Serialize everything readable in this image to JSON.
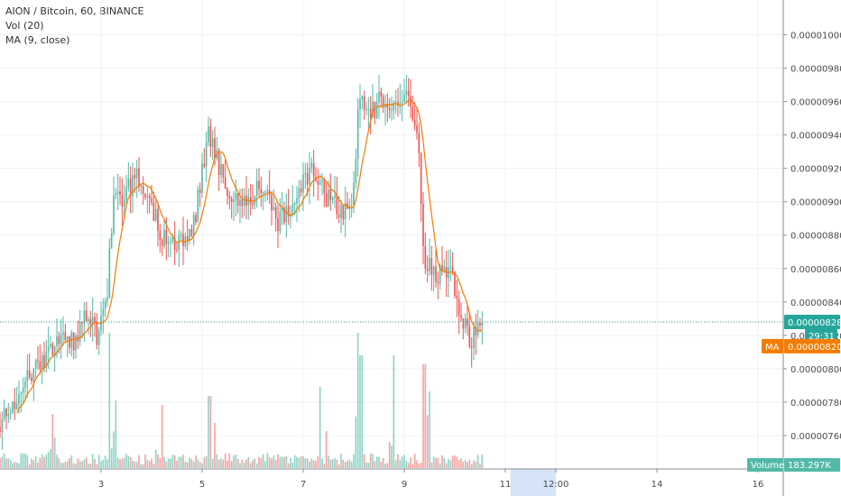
{
  "header": {
    "symbol_line": "AION / Bitcoin, 60, BINANCE",
    "volume_line": "Vol (20)",
    "ma_line": "MA (9, close)"
  },
  "colors": {
    "up": "#53b9a7",
    "down": "#ef5350",
    "ma": "#f57c00",
    "vol_up": "#8fd3c6",
    "vol_down": "#f5a3a1",
    "grid": "#eef0f3",
    "axis": "#8a8e99",
    "current_line": "#26a69a",
    "highlight": "#d6e4f8"
  },
  "chart_data": {
    "type": "candlestick",
    "y_ticks": [
      "0.00001000",
      "0.00000980",
      "0.00000960",
      "0.00000940",
      "0.00000920",
      "0.00000900",
      "0.00000880",
      "0.00000860",
      "0.00000840",
      "0.00000820",
      "0.00000800",
      "0.00000780",
      "0.00000760"
    ],
    "y_tick_values": [
      1e-05,
      9.8e-06,
      9.6e-06,
      9.4e-06,
      9.2e-06,
      9e-06,
      8.8e-06,
      8.6e-06,
      8.4e-06,
      8.2e-06,
      8e-06,
      7.8e-06,
      7.6e-06
    ],
    "x_ticks": [
      "3",
      "5",
      "7",
      "9",
      "11",
      "12:00",
      "14",
      "16"
    ],
    "x_tick_values": [
      3,
      5,
      7,
      9,
      11,
      12,
      14,
      16
    ],
    "x_range": [
      1.0,
      16.5
    ],
    "y_range": [
      7.4e-06,
      1.01e-05
    ],
    "current_price": "0.00000828",
    "current_price_value": 8.28e-06,
    "countdown": "29:31",
    "ma_label": "MA",
    "ma_value": "0.00000820",
    "ma_value_num": 8.2e-06,
    "volume_label": "Volume",
    "volume_value": "183.297K",
    "last_x": 10.55,
    "highlight_range": [
      11.1,
      12.0
    ],
    "anchors": [
      [
        1.0,
        7.65e-06
      ],
      [
        1.3,
        7.78e-06
      ],
      [
        1.6,
        7.97e-06
      ],
      [
        1.9,
        8.04e-06
      ],
      [
        2.2,
        8.2e-06
      ],
      [
        2.5,
        8.15e-06
      ],
      [
        2.75,
        8.35e-06
      ],
      [
        2.95,
        8.2e-06
      ],
      [
        3.15,
        8.38e-06
      ],
      [
        3.3,
        9.12e-06
      ],
      [
        3.45,
        8.98e-06
      ],
      [
        3.7,
        9.15e-06
      ],
      [
        3.95,
        9.08e-06
      ],
      [
        4.2,
        8.82e-06
      ],
      [
        4.5,
        8.72e-06
      ],
      [
        4.85,
        8.8e-06
      ],
      [
        5.15,
        9.4e-06
      ],
      [
        5.4,
        9.2e-06
      ],
      [
        5.65,
        9.03e-06
      ],
      [
        5.9,
        8.98e-06
      ],
      [
        6.2,
        9.12e-06
      ],
      [
        6.5,
        8.88e-06
      ],
      [
        6.8,
        8.93e-06
      ],
      [
        7.05,
        9.16e-06
      ],
      [
        7.3,
        9.18e-06
      ],
      [
        7.55,
        9e-06
      ],
      [
        7.8,
        8.95e-06
      ],
      [
        8.0,
        9e-06
      ],
      [
        8.15,
        9.58e-06
      ],
      [
        8.4,
        9.55e-06
      ],
      [
        8.65,
        9.62e-06
      ],
      [
        8.9,
        9.55e-06
      ],
      [
        9.1,
        9.65e-06
      ],
      [
        9.3,
        9.4e-06
      ],
      [
        9.45,
        8.6e-06
      ],
      [
        9.7,
        8.58e-06
      ],
      [
        10.0,
        8.55e-06
      ],
      [
        10.15,
        8.35e-06
      ],
      [
        10.35,
        8.15e-06
      ],
      [
        10.55,
        8.28e-06
      ]
    ],
    "volume_max": 320000,
    "volume_spikes": [
      {
        "x": 2.05,
        "v": 120000
      },
      {
        "x": 3.15,
        "v": 300000
      },
      {
        "x": 3.3,
        "v": 150000
      },
      {
        "x": 4.2,
        "v": 140000
      },
      {
        "x": 5.15,
        "v": 160000
      },
      {
        "x": 5.25,
        "v": 100000
      },
      {
        "x": 7.35,
        "v": 180000
      },
      {
        "x": 8.1,
        "v": 300000
      },
      {
        "x": 8.15,
        "v": 250000
      },
      {
        "x": 8.8,
        "v": 250000
      },
      {
        "x": 9.4,
        "v": 230000
      },
      {
        "x": 9.5,
        "v": 170000
      }
    ]
  }
}
